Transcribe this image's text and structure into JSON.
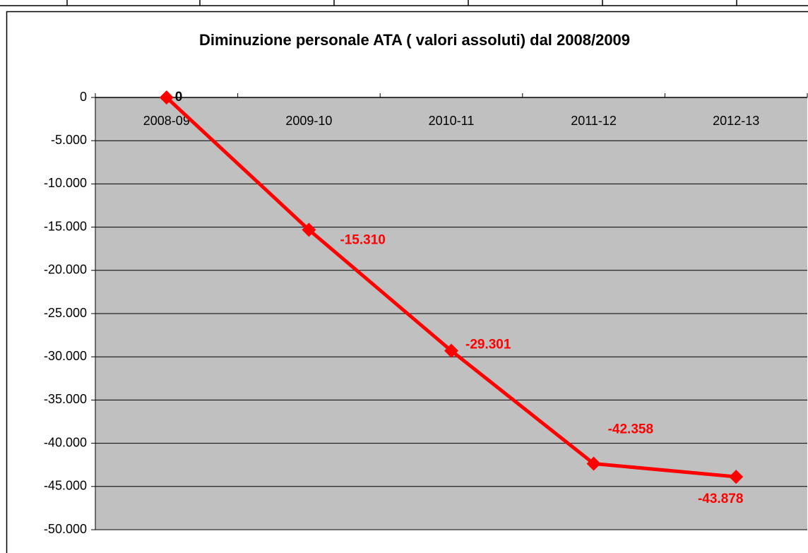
{
  "chart_data": {
    "type": "line",
    "title": "Diminuzione personale ATA ( valori assoluti) dal 2008/2009",
    "categories": [
      "2008-09",
      "2009-10",
      "2010-11",
      "2011-12",
      "2012-13"
    ],
    "series": [
      {
        "name": "Diminuzione personale ATA",
        "color": "#ff0000",
        "values": [
          0,
          -15310,
          -29301,
          -42358,
          -43878
        ],
        "value_labels": [
          "0",
          "-15.310",
          "-29.301",
          "-42.358",
          "-43.878"
        ]
      }
    ],
    "ylim": [
      -50000,
      0
    ],
    "yticks": [
      0,
      {
        "value": -5000,
        "label": "-5.000"
      },
      {
        "value": -10000,
        "label": "-10.000"
      },
      {
        "value": -15000,
        "label": "-15.000"
      },
      {
        "value": -20000,
        "label": "-20.000"
      },
      {
        "value": -25000,
        "label": "-25.000"
      },
      {
        "value": -30000,
        "label": "-30.000"
      },
      {
        "value": -35000,
        "label": "-35.000"
      },
      {
        "value": -40000,
        "label": "-40.000"
      },
      {
        "value": -45000,
        "label": "-45.000"
      },
      {
        "value": -50000,
        "label": "-50.000"
      }
    ],
    "grid": true,
    "plot_background": "#c0c0c0"
  }
}
